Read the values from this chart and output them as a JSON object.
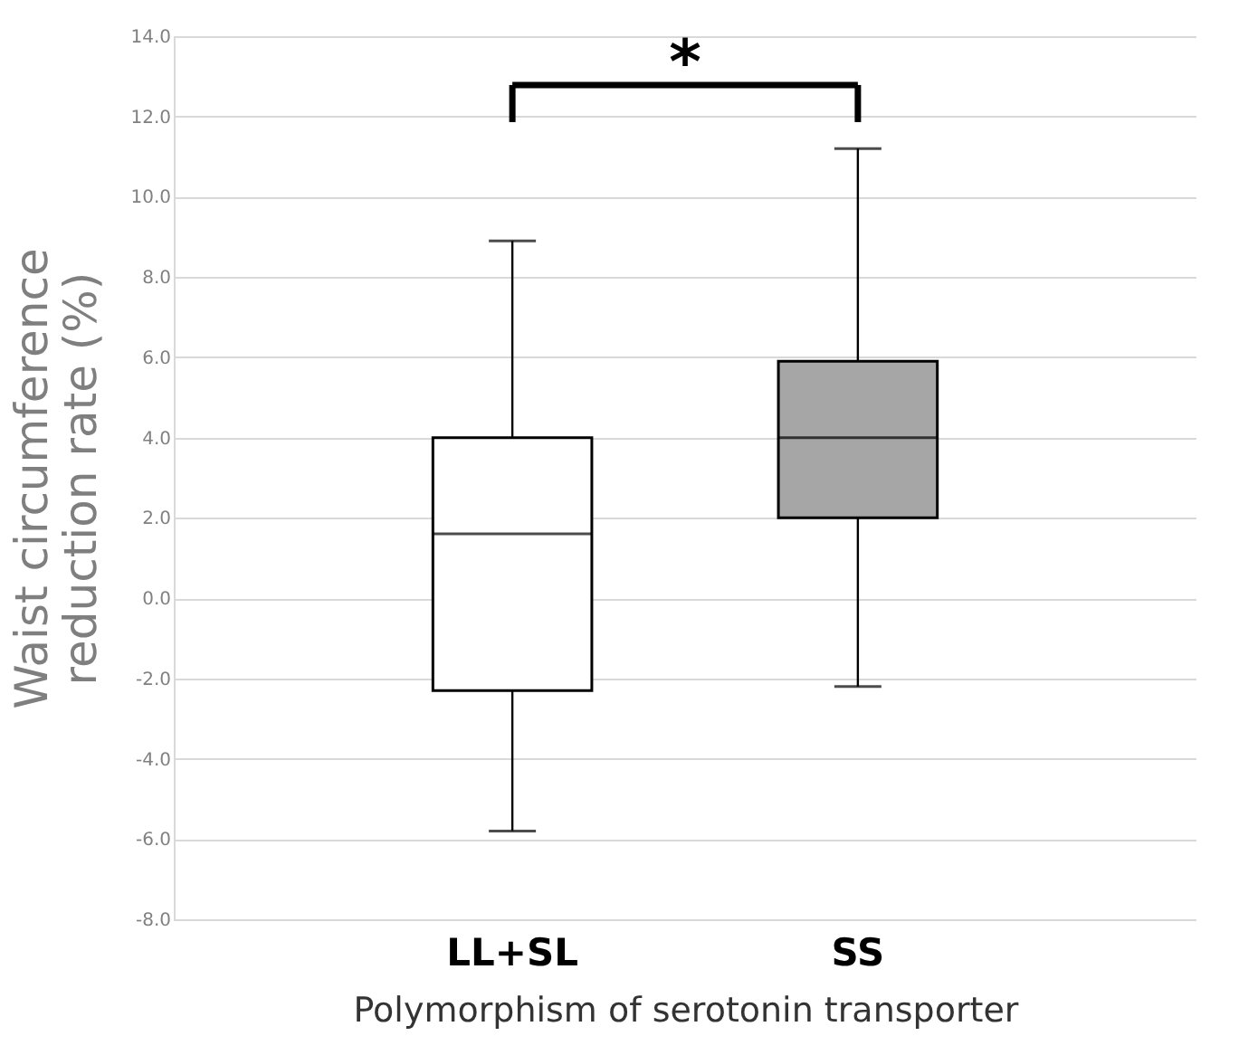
{
  "chart_data": {
    "type": "box",
    "xlabel": "Polymorphism of serotonin transporter",
    "ylabel": "Waist circumference reduction rate (%)",
    "categories": [
      "LL+SL",
      "SS"
    ],
    "colors": [
      "#ffffff",
      "#a6a6a6"
    ],
    "boxes": [
      {
        "low": -5.8,
        "q1": -2.3,
        "median": 1.6,
        "q3": 4.0,
        "high": 8.9
      },
      {
        "low": -2.2,
        "q1": 2.0,
        "median": 4.0,
        "q3": 5.9,
        "high": 11.2
      }
    ],
    "ylim": [
      -8,
      14
    ],
    "yticks": [
      {
        "value": -8,
        "label": "-8.0"
      },
      {
        "value": -6,
        "label": "-6.0"
      },
      {
        "value": -4,
        "label": "-4.0"
      },
      {
        "value": -2,
        "label": "-2.0"
      },
      {
        "value": 0,
        "label": "0.0"
      },
      {
        "value": 2,
        "label": "2.0"
      },
      {
        "value": 4,
        "label": "4.0"
      },
      {
        "value": 6,
        "label": "6.0"
      },
      {
        "value": 8,
        "label": "8.0"
      },
      {
        "value": 10,
        "label": "10.0"
      },
      {
        "value": 12,
        "label": "12.0"
      },
      {
        "value": 14,
        "label": "14.0"
      }
    ],
    "grid": "y",
    "annotations": [
      "*"
    ]
  }
}
